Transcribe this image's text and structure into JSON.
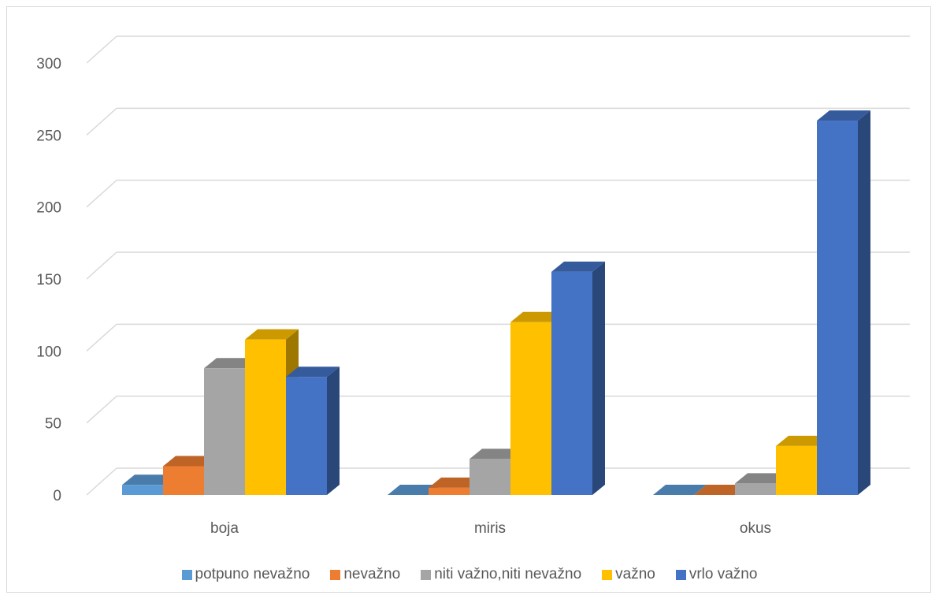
{
  "chart_data": {
    "type": "bar",
    "categories": [
      "boja",
      "miris",
      "okus"
    ],
    "series": [
      {
        "name": "potpuno nevažno",
        "color": "#5B9BD5",
        "values": [
          7,
          0,
          0
        ]
      },
      {
        "name": "nevažno",
        "color": "#ED7D31",
        "values": [
          20,
          5,
          0
        ]
      },
      {
        "name": "niti važno,niti nevažno",
        "color": "#A5A5A5",
        "values": [
          88,
          25,
          8
        ]
      },
      {
        "name": "važno",
        "color": "#FFC000",
        "values": [
          108,
          120,
          34
        ]
      },
      {
        "name": "vrlo važno",
        "color": "#4472C4",
        "values": [
          82,
          155,
          260
        ]
      }
    ],
    "yticks": [
      0,
      50,
      100,
      150,
      200,
      250,
      300
    ],
    "ylim": [
      0,
      300
    ],
    "grid": true,
    "legend": "bottom",
    "style": "3d-clustered-column"
  }
}
